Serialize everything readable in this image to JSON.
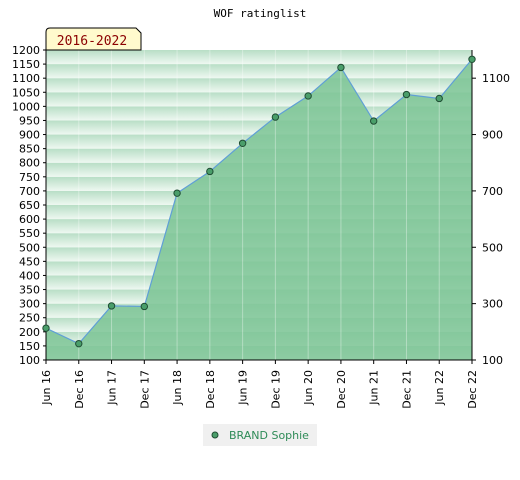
{
  "chart_data": {
    "type": "area",
    "title": "WOF ratinglist",
    "period_label": "2016-2022",
    "categories": [
      "Jun 16",
      "Dec 16",
      "Jun 17",
      "Dec 17",
      "Jun 18",
      "Dec 18",
      "Jun 19",
      "Dec 19",
      "Jun 20",
      "Dec 20",
      "Jun 21",
      "Dec 21",
      "Jun 22",
      "Dec 22"
    ],
    "series": [
      {
        "name": "BRAND Sophie",
        "values": [
          213,
          158,
          292,
          290,
          692,
          769,
          869,
          962,
          1037,
          1138,
          948,
          1042,
          1028,
          1167
        ]
      }
    ],
    "ylim": [
      100,
      1200
    ],
    "yticks_left": [
      100,
      150,
      200,
      250,
      300,
      350,
      400,
      450,
      500,
      550,
      600,
      650,
      700,
      750,
      800,
      850,
      900,
      950,
      1000,
      1050,
      1100,
      1150,
      1200
    ],
    "yticks_right": [
      100,
      300,
      500,
      700,
      900,
      1100
    ],
    "xlabel": "",
    "ylabel": "",
    "grid": true,
    "legend": "bottom-center",
    "colors": {
      "fill": "#7cc495",
      "line": "#5f9fd6",
      "marker": "#4a9e6a",
      "band_dark": "#b8dec6",
      "band_light": "#eef8f1",
      "badge_bg": "#fffacd",
      "badge_text": "#8b0000",
      "legend_text": "#2e8b57"
    }
  }
}
